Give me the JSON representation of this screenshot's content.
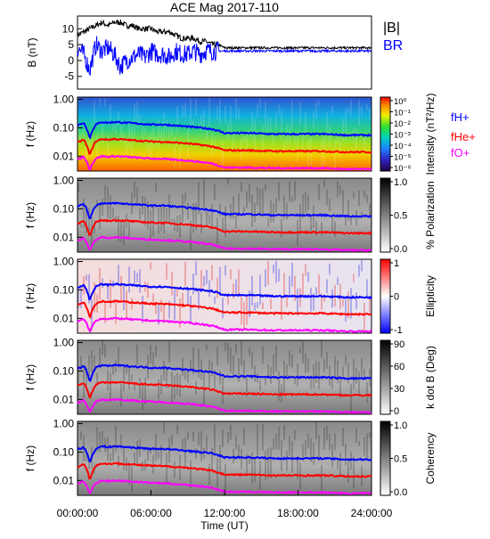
{
  "chart_data": {
    "type": "spectrogram-stack",
    "title": "ACE Mag 2017-110",
    "xlabel": "Time (UT)",
    "xlim": [
      0,
      24
    ],
    "xticks": [
      "00:00:00",
      "06:00:00",
      "12:00:00",
      "18:00:00",
      "24:00:00"
    ],
    "line_panel": {
      "ylabel": "B (nT)",
      "ylim": [
        -9,
        14
      ],
      "yticks": [
        "10",
        "5",
        "0",
        "-5"
      ],
      "legend": [
        "|B|",
        "BR"
      ],
      "series": [
        {
          "name": "|B|",
          "color": "#000000",
          "t": [
            0,
            0.5,
            1,
            1.5,
            2,
            2.5,
            3,
            3.5,
            4,
            4.5,
            5,
            5.5,
            6,
            6.5,
            7,
            7.5,
            8,
            8.5,
            9,
            9.5,
            10,
            10.5,
            11,
            11.5,
            12,
            13,
            14,
            15,
            16,
            17,
            18,
            19,
            20,
            21,
            22,
            23,
            24
          ],
          "v": [
            8,
            9,
            10,
            11,
            12,
            11,
            12,
            12,
            11,
            11,
            10,
            10,
            10,
            9,
            9,
            9,
            8,
            7,
            7,
            7,
            6,
            6,
            5,
            5,
            4,
            4,
            4,
            4,
            4,
            4,
            4,
            4,
            4,
            4,
            4,
            4,
            4
          ]
        },
        {
          "name": "BR",
          "color": "#0000ff",
          "t": [
            0,
            0.5,
            1,
            1.5,
            2,
            2.5,
            3,
            3.5,
            4,
            4.5,
            5,
            5.5,
            6,
            6.5,
            7,
            7.5,
            8,
            8.5,
            9,
            9.5,
            10,
            10.5,
            11,
            11.5,
            12,
            13,
            14,
            15,
            16,
            17,
            18,
            19,
            20,
            21,
            22,
            23,
            24
          ],
          "v": [
            4,
            2,
            -3,
            5,
            3,
            4,
            2,
            -2,
            0,
            1,
            2,
            1,
            3,
            2,
            2,
            1,
            3,
            2,
            2,
            3,
            2,
            3,
            3,
            3,
            3,
            3,
            3,
            3,
            3,
            3,
            3,
            3,
            3,
            3,
            3,
            3,
            3
          ]
        }
      ]
    },
    "spec_panels": [
      {
        "cbar_label": "Intensity (nT²/Hz)",
        "cbar_ticks": [
          "10⁰",
          "10⁻¹",
          "10⁻²",
          "10⁻³",
          "10⁻⁴",
          "10⁻⁵",
          "10⁻⁶"
        ],
        "colormap": "rainbow"
      },
      {
        "cbar_label": "% Polarization",
        "cbar_ticks": [
          "1.0",
          "0.5",
          "0.0"
        ],
        "colormap": "gray"
      },
      {
        "cbar_label": "Ellipticity",
        "cbar_ticks": [
          "1",
          "0",
          "-1"
        ],
        "colormap": "bwr"
      },
      {
        "cbar_label": "k dot B (Deg)",
        "cbar_ticks": [
          "90",
          "60",
          "30",
          "0"
        ],
        "colormap": "gray"
      },
      {
        "cbar_label": "Coherency",
        "cbar_ticks": [
          "1.0",
          "0.5",
          "0.0"
        ],
        "colormap": "gray"
      }
    ],
    "freq_axis": {
      "ylabel": "f (Hz)",
      "scale": "log",
      "ylim": [
        0.003,
        1.2
      ],
      "yticks": [
        "1.00",
        "0.10",
        "0.01"
      ]
    },
    "gyro_lines": [
      {
        "name": "fH+",
        "color": "#0000ff",
        "t": [
          0,
          0.5,
          1,
          1.5,
          2,
          2.5,
          3,
          4,
          5,
          6,
          7,
          8,
          9,
          10,
          11,
          12,
          14,
          16,
          18,
          20,
          22,
          24
        ],
        "f": [
          0.12,
          0.15,
          0.04,
          0.13,
          0.16,
          0.15,
          0.16,
          0.15,
          0.14,
          0.13,
          0.13,
          0.12,
          0.11,
          0.1,
          0.09,
          0.065,
          0.065,
          0.06,
          0.06,
          0.06,
          0.055,
          0.055
        ]
      },
      {
        "name": "fHe+",
        "color": "#ff0000",
        "t": [
          0,
          0.5,
          1,
          1.5,
          2,
          2.5,
          3,
          4,
          5,
          6,
          7,
          8,
          9,
          10,
          11,
          12,
          14,
          16,
          18,
          20,
          22,
          24
        ],
        "f": [
          0.03,
          0.038,
          0.01,
          0.033,
          0.04,
          0.038,
          0.04,
          0.038,
          0.035,
          0.033,
          0.032,
          0.03,
          0.028,
          0.025,
          0.022,
          0.016,
          0.016,
          0.015,
          0.015,
          0.015,
          0.014,
          0.014
        ]
      },
      {
        "name": "fO+",
        "color": "#ff00ff",
        "t": [
          0,
          0.5,
          1,
          1.5,
          2,
          2.5,
          3,
          4,
          5,
          6,
          7,
          8,
          9,
          10,
          11,
          12,
          14,
          16,
          18,
          20,
          22,
          24
        ],
        "f": [
          0.0075,
          0.0095,
          0.0032,
          0.0083,
          0.01,
          0.0095,
          0.01,
          0.0095,
          0.0088,
          0.0083,
          0.008,
          0.0075,
          0.007,
          0.0063,
          0.0055,
          0.004,
          0.004,
          0.0038,
          0.0038,
          0.0038,
          0.0035,
          0.0035
        ]
      }
    ]
  }
}
